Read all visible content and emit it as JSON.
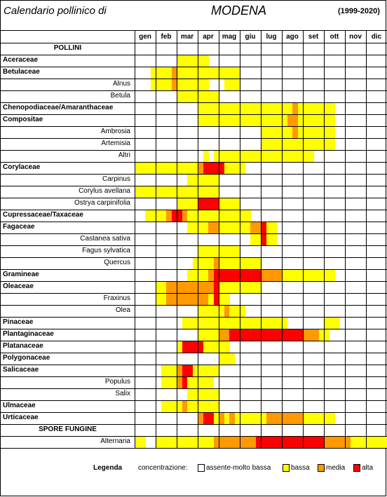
{
  "header": {
    "title": "Calendario pollinico di",
    "city": "MODENA",
    "period": "(1999-2020)"
  },
  "months": [
    "gen",
    "feb",
    "mar",
    "apr",
    "mag",
    "giu",
    "lug",
    "ago",
    "set",
    "ott",
    "nov",
    "dic"
  ],
  "colors": {
    "0": "#ffffff",
    "1": "#ffff00",
    "2": "#ff9900",
    "3": "#ff0000"
  },
  "rows": [
    {
      "label": "POLLINI",
      "kind": "section",
      "cells": ""
    },
    {
      "label": "Aceraceae",
      "kind": "family",
      "cells": "000000001111110000000000000000000000000000000000"
    },
    {
      "label": "Betulaceae",
      "kind": "family",
      "cells": "000111121111111111110000000000000000000000000000"
    },
    {
      "label": "Alnus",
      "kind": "sub",
      "cells": "000111121111110001110000000000000000000000000000"
    },
    {
      "label": "Betula",
      "kind": "sub",
      "cells": "000000001111111100000000000000000000000000000000"
    },
    {
      "label": "Chenopodiaceae/Amaranthaceae",
      "kind": "family",
      "cells": "000000000000111111111111111111211111110000000000"
    },
    {
      "label": "Compositae",
      "kind": "family",
      "cells": "000000000000111111111111111112211111110000000000"
    },
    {
      "label": "Ambrosia",
      "kind": "sub",
      "cells": "000000000000000000000000111111211111110000000000"
    },
    {
      "label": "Artemisia",
      "kind": "sub",
      "cells": "000000000000000000000000111111111111110000000000"
    },
    {
      "label": "Altri",
      "kind": "sub",
      "cells": "000000000000010111111111111111111100000000000000"
    },
    {
      "label": "Corylaceae",
      "kind": "family",
      "cells": "111111111111233331111000000000000000000000000000"
    },
    {
      "label": "Carpinus",
      "kind": "sub",
      "cells": "000000000011111100000000000000000000000000000000"
    },
    {
      "label": "Corylus avellana",
      "kind": "sub",
      "cells": "111111111111111100000000000000000000000000000000"
    },
    {
      "label": "Ostrya carpinifolia",
      "kind": "sub",
      "cells": "000000001111333311110000000000000000000000000000"
    },
    {
      "label": "Cupressaceae/Taxaceae",
      "kind": "family",
      "cells": "001111233211111111111100000000000000000000000000"
    },
    {
      "label": "Fagaceae",
      "kind": "family",
      "cells": "000000000011112211111122311000000000000000000000"
    },
    {
      "label": "Castanea sativa",
      "kind": "sub",
      "cells": "000000000000000000000011311000000000000000000000"
    },
    {
      "label": "Fagus sylvatica",
      "kind": "sub",
      "cells": "000000000000111111110000000000000000000000000000"
    },
    {
      "label": "Quercus",
      "kind": "sub",
      "cells": "000000000001111211111111000000000000000000000000"
    },
    {
      "label": "Gramineae",
      "kind": "family",
      "cells": "000000000011112333333333222211111111110000000000"
    },
    {
      "label": "Oleaceae",
      "kind": "family",
      "cells": "000011222222222311111111000000000000000000000000"
    },
    {
      "label": "Fraxinus",
      "kind": "sub",
      "cells": "000011222222221311000000000000000000000000000000"
    },
    {
      "label": "Olea",
      "kind": "sub",
      "cells": "000000000000111112111000000000000000000000000000"
    },
    {
      "label": "Pinaceae",
      "kind": "family",
      "cells": "000000000111111111111111111110000000111000000000"
    },
    {
      "label": "Plantaginaceae",
      "kind": "family",
      "cells": "000000000000111122333333333333332221100000000000"
    },
    {
      "label": "Platanaceae",
      "kind": "family",
      "cells": "000000001333311111000000000000000000000000000000"
    },
    {
      "label": "Polygonaceae",
      "kind": "family",
      "cells": "000000000000000011100000000000000000000000000000"
    },
    {
      "label": "Salicaceae",
      "kind": "family",
      "cells": "000001112331111100000000000000000000000000000000"
    },
    {
      "label": "Populus",
      "kind": "sub",
      "cells": "000001112311111000000000000000000000000000000000"
    },
    {
      "label": "Salix",
      "kind": "sub",
      "cells": "000000000011111100000000000000000000000000000000"
    },
    {
      "label": "Ulmaceae",
      "kind": "family",
      "cells": "000001111211111100000000000000000000000000000000"
    },
    {
      "label": "Urticaceae",
      "kind": "family",
      "cells": "000000000000233121211111122222221111110000000000"
    },
    {
      "label": "SPORE FUNGINE",
      "kind": "section",
      "cells": ""
    },
    {
      "label": "Alternaria",
      "kind": "sub",
      "cells": "110011111111111222222223333333333333222221111111"
    }
  ],
  "legend": {
    "title": "Legenda",
    "intro": "concentrazione:",
    "items": [
      {
        "label": "assente-molto bassa",
        "level": "0"
      },
      {
        "label": "bassa",
        "level": "1"
      },
      {
        "label": "media",
        "level": "2"
      },
      {
        "label": "alta",
        "level": "3"
      }
    ]
  }
}
